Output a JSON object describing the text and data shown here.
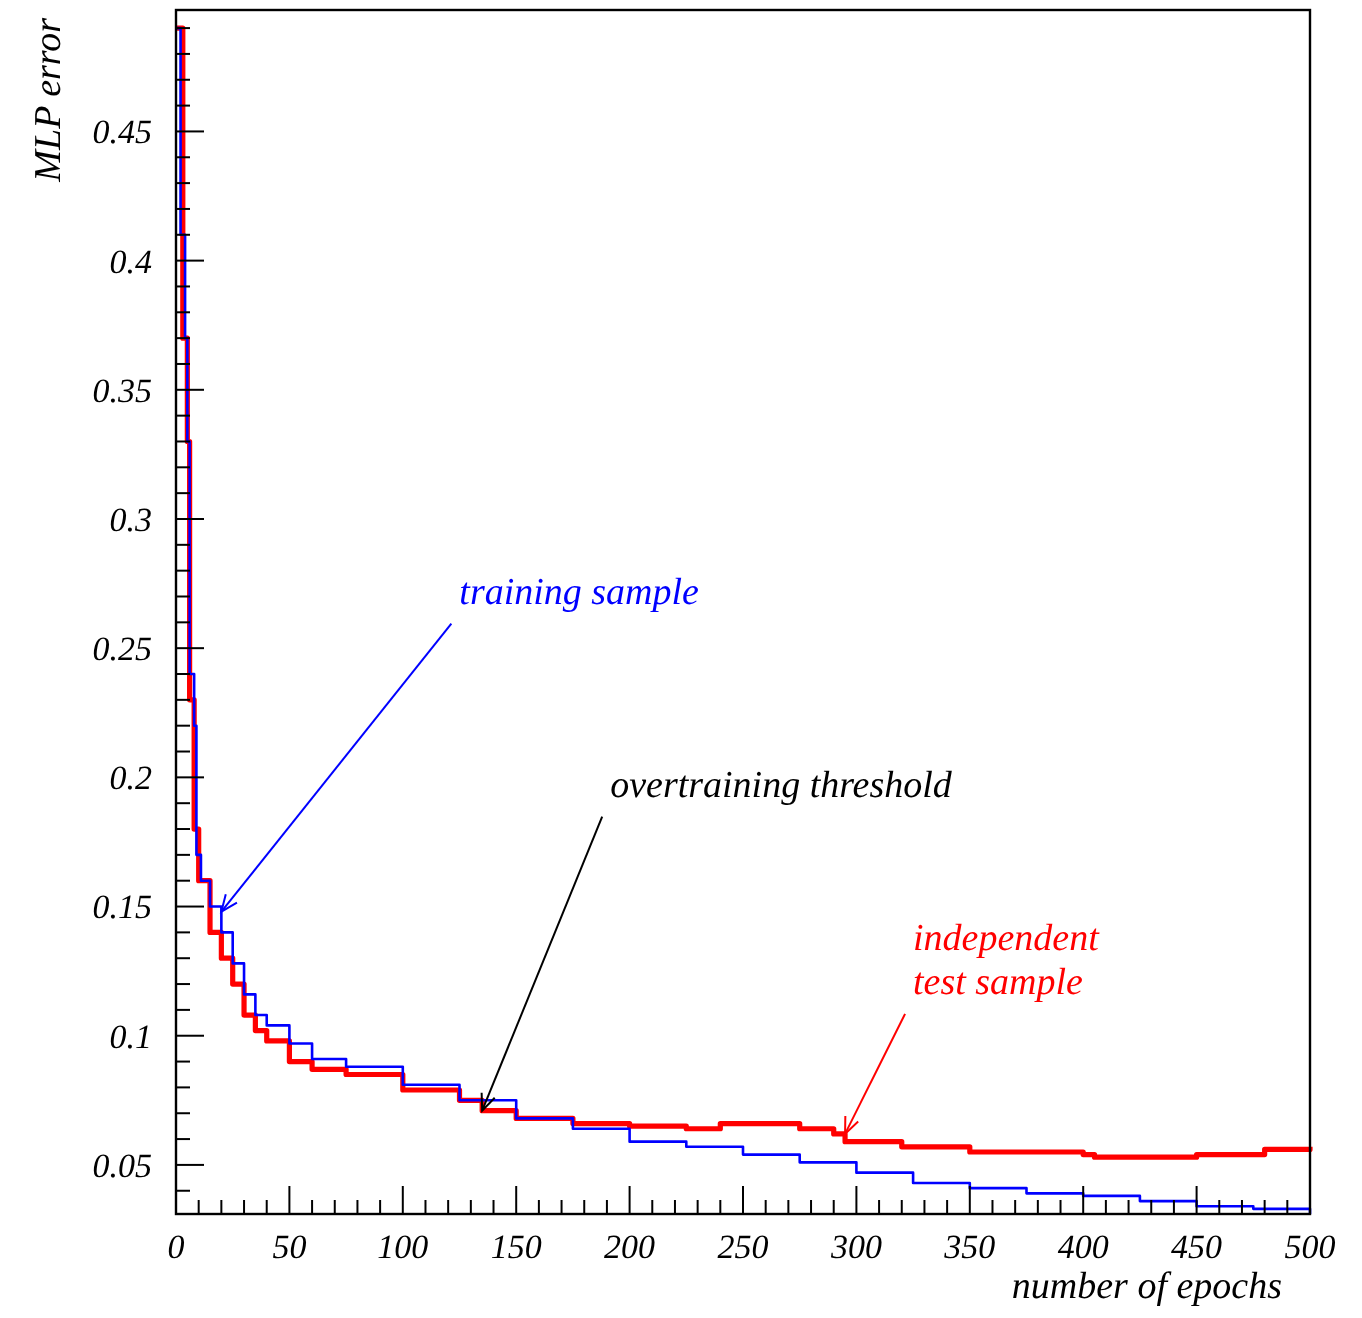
{
  "chart_data": {
    "type": "step",
    "xlabel": "number of epochs",
    "ylabel": "MLP error",
    "xlim": [
      0,
      500
    ],
    "ylim": [
      0.031,
      0.497
    ],
    "xticks": [
      0,
      {
        "value": 10,
        "label": null
      },
      {
        "value": 20,
        "label": null
      },
      {
        "value": 30,
        "label": null
      },
      {
        "value": 40,
        "label": null
      },
      50,
      {
        "value": 60,
        "label": null
      },
      {
        "value": 70,
        "label": null
      },
      {
        "value": 80,
        "label": null
      },
      {
        "value": 90,
        "label": null
      },
      100,
      {
        "value": 110,
        "label": null
      },
      {
        "value": 120,
        "label": null
      },
      {
        "value": 130,
        "label": null
      },
      {
        "value": 140,
        "label": null
      },
      150,
      {
        "value": 160,
        "label": null
      },
      {
        "value": 170,
        "label": null
      },
      {
        "value": 180,
        "label": null
      },
      {
        "value": 190,
        "label": null
      },
      200,
      {
        "value": 210,
        "label": null
      },
      {
        "value": 220,
        "label": null
      },
      {
        "value": 230,
        "label": null
      },
      {
        "value": 240,
        "label": null
      },
      250,
      {
        "value": 260,
        "label": null
      },
      {
        "value": 270,
        "label": null
      },
      {
        "value": 280,
        "label": null
      },
      {
        "value": 290,
        "label": null
      },
      300,
      {
        "value": 310,
        "label": null
      },
      {
        "value": 320,
        "label": null
      },
      {
        "value": 330,
        "label": null
      },
      {
        "value": 340,
        "label": null
      },
      350,
      {
        "value": 360,
        "label": null
      },
      {
        "value": 370,
        "label": null
      },
      {
        "value": 380,
        "label": null
      },
      {
        "value": 390,
        "label": null
      },
      400,
      {
        "value": 410,
        "label": null
      },
      {
        "value": 420,
        "label": null
      },
      {
        "value": 430,
        "label": null
      },
      {
        "value": 440,
        "label": null
      },
      450,
      {
        "value": 460,
        "label": null
      },
      {
        "value": 470,
        "label": null
      },
      {
        "value": 480,
        "label": null
      },
      {
        "value": 490,
        "label": null
      },
      500
    ],
    "yticks": [
      {
        "value": 0.04,
        "label": null
      },
      0.05,
      {
        "value": 0.06,
        "label": null
      },
      {
        "value": 0.07,
        "label": null
      },
      {
        "value": 0.08,
        "label": null
      },
      {
        "value": 0.09,
        "label": null
      },
      0.1,
      {
        "value": 0.11,
        "label": null
      },
      {
        "value": 0.12,
        "label": null
      },
      {
        "value": 0.13,
        "label": null
      },
      {
        "value": 0.14,
        "label": null
      },
      0.15,
      {
        "value": 0.16,
        "label": null
      },
      {
        "value": 0.17,
        "label": null
      },
      {
        "value": 0.18,
        "label": null
      },
      {
        "value": 0.19,
        "label": null
      },
      0.2,
      {
        "value": 0.21,
        "label": null
      },
      {
        "value": 0.22,
        "label": null
      },
      {
        "value": 0.23,
        "label": null
      },
      {
        "value": 0.24,
        "label": null
      },
      0.25,
      {
        "value": 0.26,
        "label": null
      },
      {
        "value": 0.27,
        "label": null
      },
      {
        "value": 0.28,
        "label": null
      },
      {
        "value": 0.29,
        "label": null
      },
      0.3,
      {
        "value": 0.31,
        "label": null
      },
      {
        "value": 0.32,
        "label": null
      },
      {
        "value": 0.33,
        "label": null
      },
      {
        "value": 0.34,
        "label": null
      },
      0.35,
      {
        "value": 0.36,
        "label": null
      },
      {
        "value": 0.37,
        "label": null
      },
      {
        "value": 0.38,
        "label": null
      },
      {
        "value": 0.39,
        "label": null
      },
      0.4,
      {
        "value": 0.41,
        "label": null
      },
      {
        "value": 0.42,
        "label": null
      },
      {
        "value": 0.43,
        "label": null
      },
      {
        "value": 0.44,
        "label": null
      },
      0.45,
      {
        "value": 0.46,
        "label": null
      },
      {
        "value": 0.47,
        "label": null
      },
      {
        "value": 0.48,
        "label": null
      },
      {
        "value": 0.49,
        "label": null
      }
    ],
    "series": [
      {
        "color": "#ff0000",
        "x": [
          0,
          3,
          5,
          6,
          8,
          10,
          15,
          20,
          25,
          30,
          35,
          40,
          50,
          60,
          75,
          100,
          125,
          135,
          150,
          175,
          200,
          225,
          240,
          275,
          290,
          295,
          320,
          350,
          400,
          405,
          450,
          480,
          500
        ],
        "values": [
          0.49,
          0.37,
          0.33,
          0.23,
          0.18,
          0.16,
          0.14,
          0.13,
          0.12,
          0.108,
          0.102,
          0.098,
          0.09,
          0.087,
          0.085,
          0.079,
          0.075,
          0.071,
          0.068,
          0.066,
          0.065,
          0.064,
          0.066,
          0.064,
          0.062,
          0.059,
          0.057,
          0.055,
          0.054,
          0.053,
          0.054,
          0.056,
          0.057
        ]
      },
      {
        "color": "#0000ff",
        "x": [
          0,
          2,
          4,
          5,
          6,
          8,
          9,
          11,
          15,
          20,
          25,
          30,
          35,
          40,
          50,
          60,
          75,
          100,
          125,
          150,
          175,
          200,
          225,
          250,
          275,
          300,
          325,
          350,
          375,
          400,
          425,
          450,
          475,
          500
        ],
        "values": [
          0.49,
          0.41,
          0.37,
          0.33,
          0.24,
          0.22,
          0.17,
          0.16,
          0.15,
          0.14,
          0.128,
          0.116,
          0.108,
          0.104,
          0.097,
          0.091,
          0.088,
          0.081,
          0.075,
          0.068,
          0.064,
          0.059,
          0.057,
          0.054,
          0.051,
          0.047,
          0.043,
          0.041,
          0.039,
          0.038,
          0.036,
          0.034,
          0.033,
          0.031
        ]
      }
    ],
    "annotations": [
      {
        "text": "training sample",
        "x": 20,
        "y": 0.148
      },
      {
        "text": "overtraining threshold",
        "x": 135,
        "y": 0.071
      },
      {
        "text": "independent\ntest sample",
        "x": 295,
        "y": 0.062
      }
    ]
  }
}
